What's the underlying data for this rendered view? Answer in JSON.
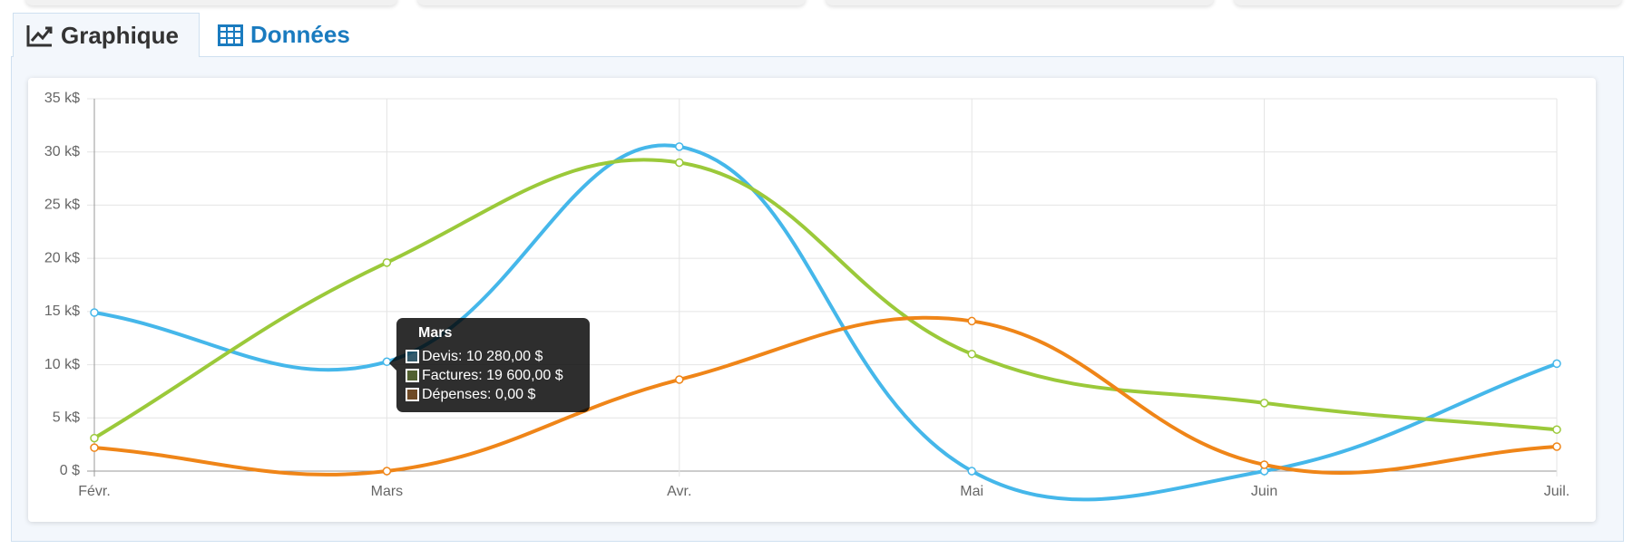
{
  "tabs": [
    "Graphique",
    "Données"
  ],
  "chart_data": {
    "type": "line",
    "categories": [
      "Févr.",
      "Mars",
      "Avr.",
      "Mai",
      "Juin",
      "Juil."
    ],
    "series": [
      {
        "name": "Devis",
        "color": "#45b7ea",
        "values": [
          14.9,
          10.28,
          30.5,
          0,
          0,
          10.1
        ]
      },
      {
        "name": "Factures",
        "color": "#9bc93a",
        "values": [
          3.1,
          19.6,
          29,
          11,
          6.4,
          3.9
        ]
      },
      {
        "name": "Dépenses",
        "color": "#ef8518",
        "values": [
          2.2,
          0,
          8.6,
          14.1,
          0.6,
          2.3
        ]
      }
    ],
    "ylim": [
      0,
      35
    ],
    "yticks": [
      {
        "value": 0,
        "label": "0 $"
      },
      {
        "value": 5,
        "label": "5 k$"
      },
      {
        "value": 10,
        "label": "10 k$"
      },
      {
        "value": 15,
        "label": "15 k$"
      },
      {
        "value": 20,
        "label": "20 k$"
      },
      {
        "value": 25,
        "label": "25 k$"
      },
      {
        "value": 30,
        "label": "30 k$"
      },
      {
        "value": 35,
        "label": "35 k$"
      }
    ],
    "grid": true,
    "tooltip": {
      "title": "Mars",
      "entries": [
        "Devis: 10 280,00 $",
        "Factures: 19 600,00 $",
        "Dépenses: 0,00 $"
      ]
    }
  }
}
